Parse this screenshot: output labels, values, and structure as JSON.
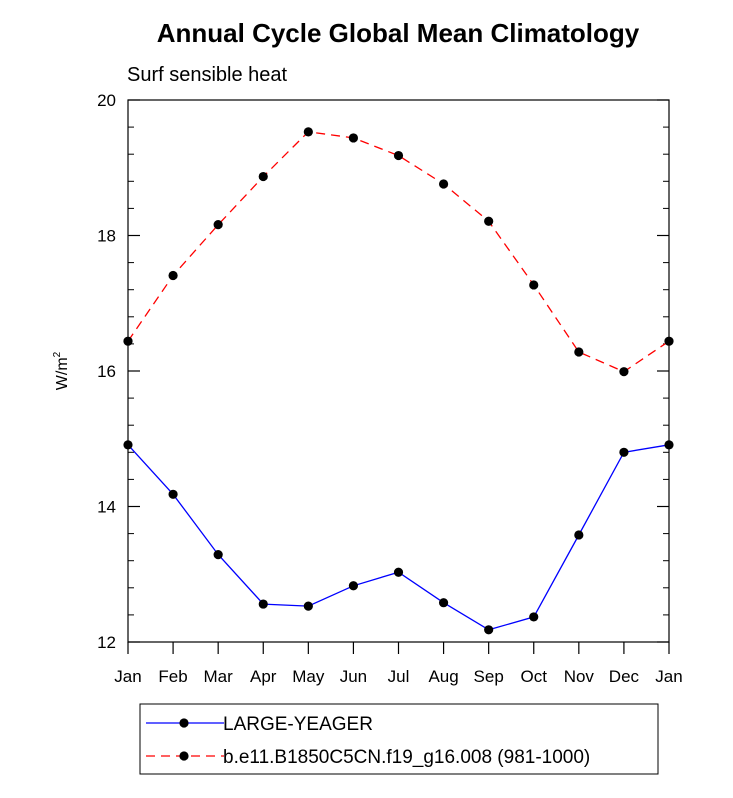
{
  "chart_data": {
    "type": "line",
    "title": "Annual Cycle Global Mean Climatology",
    "subtitle": "Surf sensible heat",
    "ylabel": "W/m",
    "ylabel_superscript": "2",
    "xlabel": "",
    "categories": [
      "Jan",
      "Feb",
      "Mar",
      "Apr",
      "May",
      "Jun",
      "Jul",
      "Aug",
      "Sep",
      "Oct",
      "Nov",
      "Dec",
      "Jan"
    ],
    "ylim": [
      12,
      20
    ],
    "yticks": [
      12,
      14,
      16,
      18,
      20
    ],
    "ytick_labels": [
      "12",
      "14",
      "16",
      "18",
      "20"
    ],
    "series": [
      {
        "name": "LARGE-YEAGER",
        "color": "#0000ff",
        "dash": "solid",
        "values": [
          14.91,
          14.18,
          13.29,
          12.56,
          12.53,
          12.83,
          13.03,
          12.58,
          12.18,
          12.37,
          13.58,
          14.8,
          14.91
        ]
      },
      {
        "name": "b.e11.B1850C5CN.f19_g16.008 (981-1000)",
        "color": "#ff0000",
        "dash": "dashed",
        "values": [
          16.44,
          17.41,
          18.16,
          18.87,
          19.53,
          19.44,
          19.18,
          18.76,
          18.21,
          17.27,
          16.28,
          15.99,
          16.44
        ]
      }
    ],
    "marker_color": "#000000",
    "legend_position": "bottom"
  }
}
